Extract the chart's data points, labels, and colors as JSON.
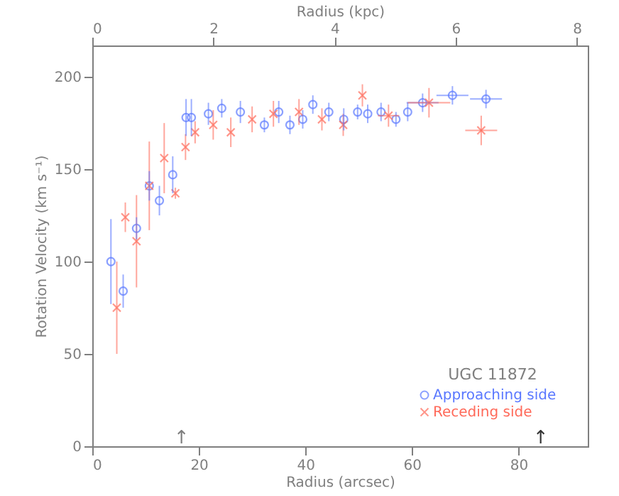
{
  "chart_data": {
    "type": "scatter",
    "xlabel": "Radius (arcsec)",
    "ylabel": "Rotation Velocity (km s⁻¹)",
    "x2label": "Radius (kpc)",
    "legend_title": "UGC 11872",
    "legend": "bottom right",
    "grid": false,
    "xlim": [
      0,
      93
    ],
    "xticks": [
      0,
      20,
      40,
      60,
      80
    ],
    "ylim": [
      0,
      217
    ],
    "yticks": [
      0,
      50,
      100,
      150,
      200
    ],
    "x2lim": [
      0,
      8.18
    ],
    "x2ticks": [
      0,
      2,
      4,
      6,
      8
    ],
    "series": [
      {
        "name": "Approaching side",
        "color": "#5a78ff",
        "marker": "circle",
        "x": [
          3.5,
          5.8,
          8.3,
          10.7,
          12.6,
          15.1,
          17.6,
          18.6,
          21.8,
          24.3,
          27.8,
          32.3,
          35,
          37.1,
          39.5,
          41.4,
          44.4,
          47.2,
          49.8,
          51.7,
          54.2,
          57,
          59.2,
          62,
          67.6,
          73.9
        ],
        "values": [
          100,
          84,
          118,
          141,
          133,
          147,
          178,
          178,
          180,
          183,
          181,
          174,
          181,
          174,
          177,
          185,
          181,
          177,
          181,
          180,
          181,
          177,
          181,
          186,
          190,
          188
        ],
        "errors": [
          23,
          9,
          6,
          8,
          8,
          10,
          10,
          10,
          6,
          5,
          6,
          4,
          6,
          5,
          5,
          5,
          5,
          6,
          4,
          5,
          5,
          4,
          5,
          5,
          5,
          5
        ],
        "xerrors": [
          null,
          null,
          null,
          null,
          null,
          null,
          null,
          null,
          null,
          null,
          null,
          null,
          null,
          null,
          null,
          null,
          null,
          null,
          null,
          null,
          null,
          null,
          null,
          3,
          3,
          3
        ]
      },
      {
        "name": "Receding side",
        "color": "#ff6a5a",
        "marker": "cross",
        "x": [
          4.6,
          6.2,
          8.3,
          10.7,
          13.5,
          15.6,
          17.5,
          19.3,
          22.7,
          26,
          30,
          34,
          38.8,
          43.1,
          47.1,
          50.7,
          55.6,
          63.2,
          73
        ],
        "values": [
          75,
          124,
          111,
          141,
          156,
          137,
          162,
          170,
          174,
          170,
          177,
          180,
          181,
          177,
          174,
          190,
          179,
          186,
          171
        ],
        "errors": [
          25,
          8,
          25,
          24,
          19,
          3,
          7,
          6,
          8,
          8,
          7,
          7,
          7,
          6,
          6,
          6,
          6,
          8,
          8
        ],
        "xerrors": [
          null,
          null,
          null,
          null,
          null,
          null,
          null,
          null,
          null,
          null,
          null,
          null,
          null,
          null,
          null,
          null,
          2,
          4,
          3
        ]
      }
    ],
    "annotations": [
      "↑",
      "↑"
    ]
  }
}
